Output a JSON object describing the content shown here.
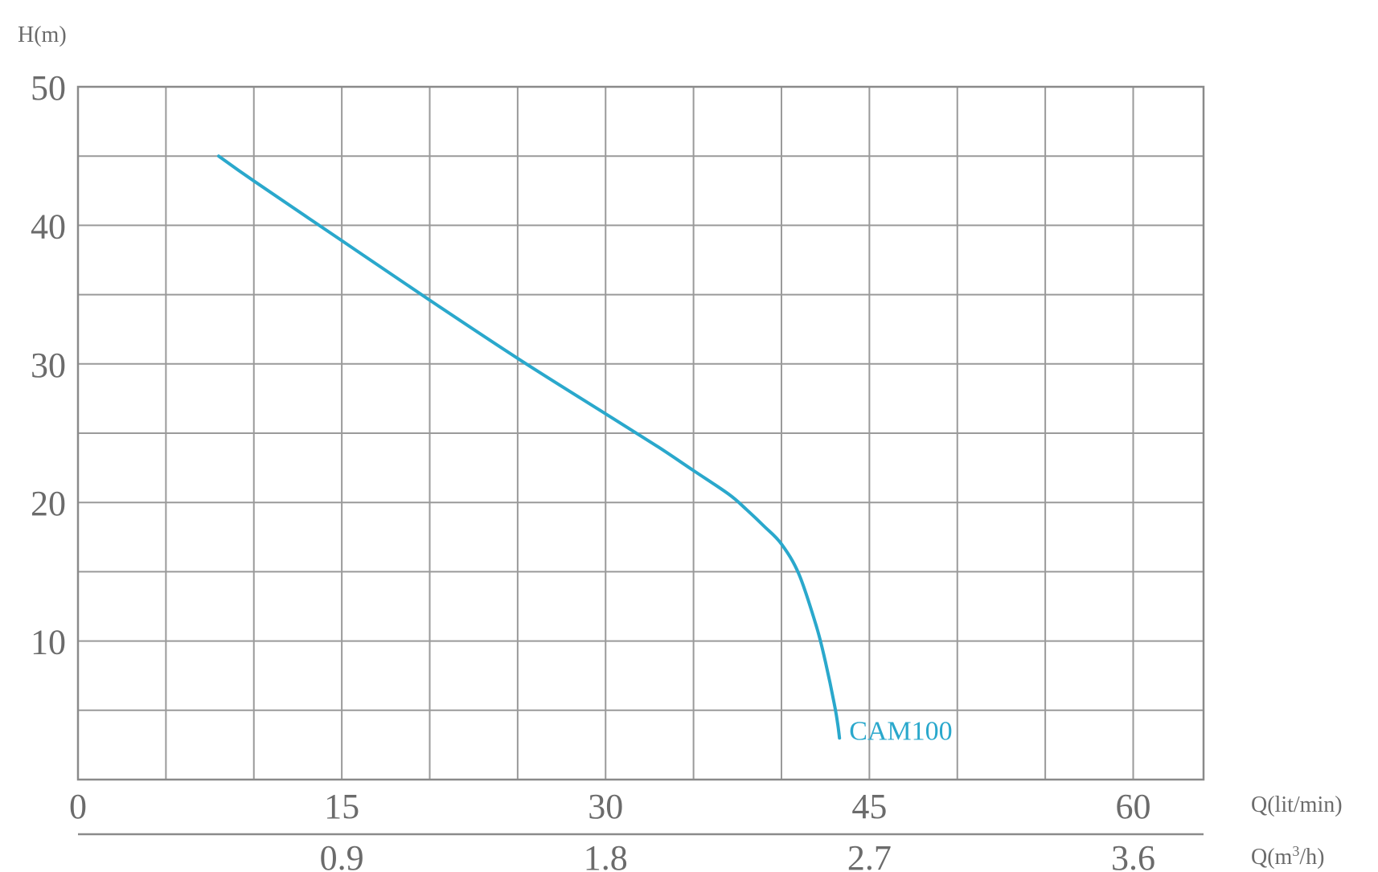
{
  "chart_data": {
    "type": "line",
    "ylabel": "H(m)",
    "xlabel": "Q(lit/min)",
    "x2label_prefix": "Q(m",
    "x2label_sup": "3",
    "x2label_suffix": "/h)",
    "xlim": [
      0,
      64
    ],
    "ylim": [
      0,
      50
    ],
    "x_ticks": [
      {
        "value": 0,
        "label": "0"
      },
      {
        "value": 15,
        "label": "15"
      },
      {
        "value": 30,
        "label": "30"
      },
      {
        "value": 45,
        "label": "45"
      },
      {
        "value": 60,
        "label": "60"
      }
    ],
    "x2_ticks": [
      {
        "value": 15,
        "label": "0.9"
      },
      {
        "value": 30,
        "label": "1.8"
      },
      {
        "value": 45,
        "label": "2.7"
      },
      {
        "value": 60,
        "label": "3.6"
      }
    ],
    "y_ticks": [
      {
        "value": 10,
        "label": "10"
      },
      {
        "value": 20,
        "label": "20"
      },
      {
        "value": 30,
        "label": "30"
      },
      {
        "value": 40,
        "label": "40"
      },
      {
        "value": 50,
        "label": "50"
      }
    ],
    "grid": true,
    "grid_x_step": 5,
    "grid_y_step": 5,
    "series": [
      {
        "name": "CAM100",
        "color": "#2aa8cc",
        "x": [
          8,
          10,
          15,
          20,
          25,
          30,
          33,
          35,
          37,
          38,
          39,
          40,
          41,
          42,
          42.5,
          43,
          43.2,
          43.3
        ],
        "y": [
          45,
          43.2,
          38.9,
          34.6,
          30.4,
          26.4,
          24.0,
          22.3,
          20.6,
          19.5,
          18.3,
          17.0,
          14.8,
          11.0,
          8.5,
          5.5,
          4.0,
          3.0
        ]
      }
    ]
  }
}
